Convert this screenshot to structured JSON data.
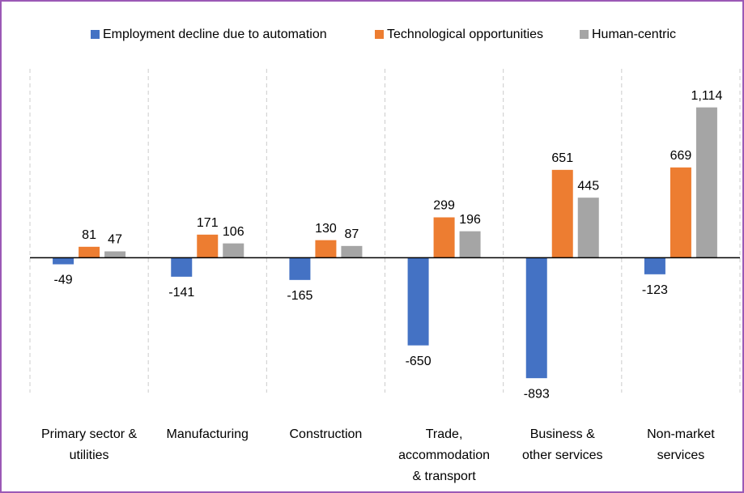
{
  "chart_data": {
    "type": "bar",
    "categories": [
      [
        "Primary sector &",
        "utilities"
      ],
      [
        "Manufacturing"
      ],
      [
        "Construction"
      ],
      [
        "Trade,",
        "accommodation",
        "& transport"
      ],
      [
        "Business &",
        "other services"
      ],
      [
        "Non-market",
        "services"
      ]
    ],
    "series": [
      {
        "name": "Employment decline due to automation",
        "color": "#4472c4",
        "values": [
          -49,
          -141,
          -165,
          -650,
          -893,
          -123
        ]
      },
      {
        "name": "Technological opportunities",
        "color": "#ed7d31",
        "values": [
          81,
          171,
          130,
          299,
          651,
          669
        ]
      },
      {
        "name": "Human-centric",
        "color": "#a5a5a5",
        "values": [
          47,
          106,
          87,
          196,
          445,
          1114
        ],
        "value_labels": [
          "47",
          "106",
          "87",
          "196",
          "445",
          "1,114"
        ]
      }
    ],
    "ylim": [
      -1000,
      1400
    ]
  }
}
